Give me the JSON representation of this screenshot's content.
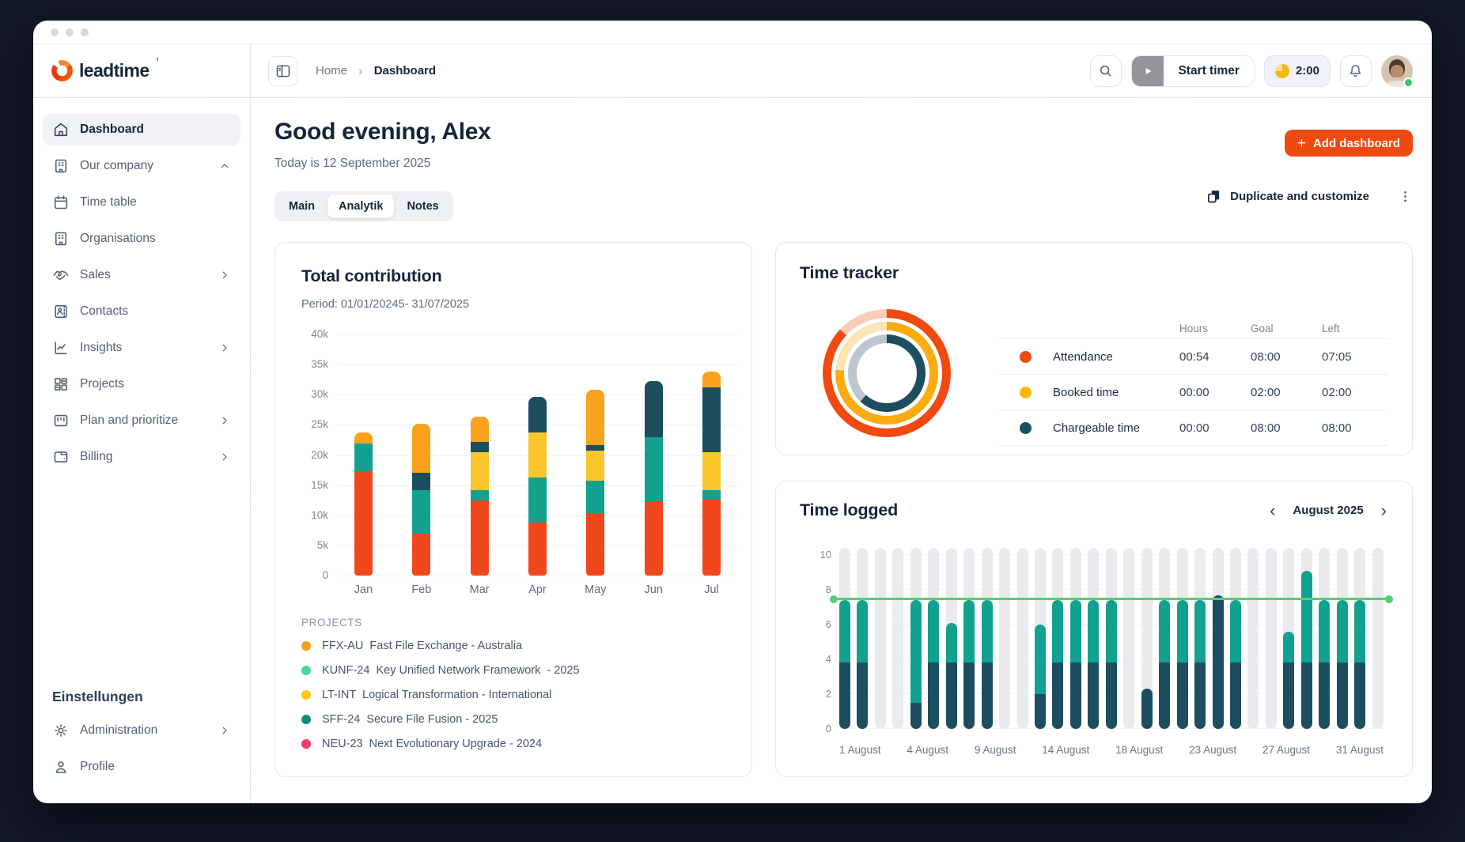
{
  "brand": {
    "name": "leadtime",
    "trademark": "’"
  },
  "breadcrumb": {
    "home": "Home",
    "separator": "›",
    "current": "Dashboard"
  },
  "topbar": {
    "start_timer_label": "Start timer",
    "timer_value": "2:00"
  },
  "icons_text": {
    "month_prev": "‹",
    "month_next": "›",
    "plus": "+"
  },
  "sidebar": {
    "items": [
      {
        "label": "Dashboard",
        "icon": "home-icon",
        "active": true
      },
      {
        "label": "Our company",
        "icon": "company-icon",
        "chevron": "up"
      },
      {
        "label": "Time table",
        "icon": "calendar-icon"
      },
      {
        "label": "Organisations",
        "icon": "organisation-icon"
      },
      {
        "label": "Sales",
        "icon": "handshake-icon",
        "chevron": "right"
      },
      {
        "label": "Contacts",
        "icon": "contact-card-icon"
      },
      {
        "label": "Insights",
        "icon": "insights-chart-icon",
        "chevron": "right"
      },
      {
        "label": "Projects",
        "icon": "projects-grid-icon"
      },
      {
        "label": "Plan and prioritize",
        "icon": "plan-board-icon",
        "chevron": "right"
      },
      {
        "label": "Billing",
        "icon": "billing-icon",
        "chevron": "right"
      }
    ],
    "settings_heading": "Einstellungen",
    "settings_items": [
      {
        "label": "Administration",
        "icon": "gear-icon",
        "chevron": "right"
      },
      {
        "label": "Profile",
        "icon": "profile-icon"
      }
    ]
  },
  "page": {
    "greeting": "Good evening, Alex",
    "date_line": "Today is 12 September 2025",
    "tabs": [
      {
        "label": "Main",
        "active": false
      },
      {
        "label": "Analytik",
        "active": true
      },
      {
        "label": "Notes",
        "active": false
      }
    ],
    "add_dashboard_label": "Add dashboard",
    "duplicate_label": "Duplicate and customize"
  },
  "contribution": {
    "title": "Total contribution",
    "period": "Period: 01/01/20245- 31/07/2025",
    "legend_heading": "PROJECTS",
    "legend": [
      {
        "color": "#F79E1B",
        "label": "FFX-AU  Fast File Exchange - Australia"
      },
      {
        "color": "#4BD69B",
        "label": "KUNF-24  Key Unified Network Framework  - 2025"
      },
      {
        "color": "#FBC913",
        "label": "LT-INT  Logical Transformation - International"
      },
      {
        "color": "#0F8B7B",
        "label": "SFF-24  Secure File Fusion - 2025"
      },
      {
        "color": "#F0396B",
        "label": "NEU-23  Next Evolutionary Upgrade - 2024"
      }
    ],
    "chart_data": {
      "type": "bar",
      "stacked": true,
      "categories": [
        "Jan",
        "Feb",
        "Mar",
        "Apr",
        "May",
        "Jun",
        "Jul"
      ],
      "ylim": [
        0,
        40
      ],
      "unit": "k",
      "yticks": [
        "40k",
        "35k",
        "30k",
        "25k",
        "20k",
        "15k",
        "10k",
        "5k",
        "0"
      ],
      "grid": true,
      "series": [
        {
          "name": "NEU-23",
          "color": "#F1471D",
          "values": [
            17.3,
            6.9,
            12.4,
            8.8,
            10.3,
            12.3,
            12.6
          ]
        },
        {
          "name": "KUNF-24",
          "color": "#12A18F",
          "values": [
            4.6,
            7.2,
            1.7,
            7.5,
            5.5,
            10.6,
            1.6
          ]
        },
        {
          "name": "LT-INT",
          "color": "#FBC62C",
          "values": [
            0,
            0,
            6.4,
            7.5,
            4.9,
            0,
            6.2
          ]
        },
        {
          "name": "SFF-24",
          "color": "#1C4E5F",
          "values": [
            0,
            3.0,
            1.7,
            5.8,
            0.9,
            9.3,
            10.8
          ]
        },
        {
          "name": "FFX-AU",
          "color": "#F9A21B",
          "values": [
            1.9,
            8.1,
            4.2,
            0,
            9.2,
            0,
            2.6
          ]
        }
      ]
    }
  },
  "time_tracker": {
    "title": "Time tracker",
    "columns": [
      "Hours",
      "Goal",
      "Left"
    ],
    "rows": [
      {
        "label": "Attendance",
        "color": "#EE4A16",
        "hours": "00:54",
        "goal": "08:00",
        "left": "07:05"
      },
      {
        "label": "Booked time",
        "color": "#FBB612",
        "hours": "00:00",
        "goal": "02:00",
        "left": "02:00"
      },
      {
        "label": "Chargeable time",
        "color": "#1C4E5F",
        "hours": "00:00",
        "goal": "08:00",
        "left": "08:00"
      }
    ],
    "rings": [
      {
        "name": "attendance-ring",
        "color": "#F04A10",
        "track": "#F9CDBC",
        "percent": 87
      },
      {
        "name": "booked-time-ring",
        "color": "#FBAC10",
        "track": "#FCE4B4",
        "percent": 76
      },
      {
        "name": "chargeable-time-ring",
        "color": "#1C4E5F",
        "track": "#BDC6CE",
        "percent": 62
      }
    ]
  },
  "time_logged": {
    "title": "Time logged",
    "month_label": "August 2025",
    "chart_data": {
      "type": "bar",
      "stacked": true,
      "x_days": [
        1,
        2,
        3,
        4,
        5,
        6,
        7,
        8,
        9,
        10,
        11,
        12,
        13,
        14,
        15,
        16,
        17,
        18,
        19,
        20,
        21,
        22,
        23,
        24,
        25,
        26,
        27,
        28,
        29,
        30,
        31
      ],
      "ylim": [
        0,
        10
      ],
      "yticks": [
        0,
        2,
        4,
        6,
        8,
        10
      ],
      "tick_labels": [
        "1 August",
        "4 August",
        "9 August",
        "14 August",
        "18 August",
        "23 August",
        "27 August",
        "31 August"
      ],
      "goal_line": 7.4,
      "background_bar_value": 10.4,
      "background_bar_color": "#E9EBEE",
      "goal_line_color": "#53D170",
      "series": [
        {
          "name": "Chargeable",
          "color": "#1C4E5F",
          "values": [
            3.8,
            3.8,
            0,
            0,
            1.5,
            3.8,
            3.8,
            3.8,
            3.8,
            0,
            0,
            2.0,
            3.8,
            3.8,
            3.8,
            3.8,
            0,
            2.3,
            3.8,
            3.8,
            3.8,
            7.7,
            3.8,
            0,
            0,
            3.8,
            3.8,
            3.8,
            3.8,
            3.8,
            0
          ]
        },
        {
          "name": "Attendance",
          "color": "#12A18F",
          "values": [
            3.6,
            3.6,
            0,
            0,
            5.9,
            3.6,
            2.3,
            3.6,
            3.6,
            0,
            0,
            4.0,
            3.6,
            3.6,
            3.6,
            3.6,
            0,
            0,
            3.6,
            3.6,
            3.6,
            0,
            3.6,
            0,
            0,
            1.8,
            5.3,
            3.6,
            3.6,
            3.6,
            0
          ]
        }
      ]
    }
  }
}
